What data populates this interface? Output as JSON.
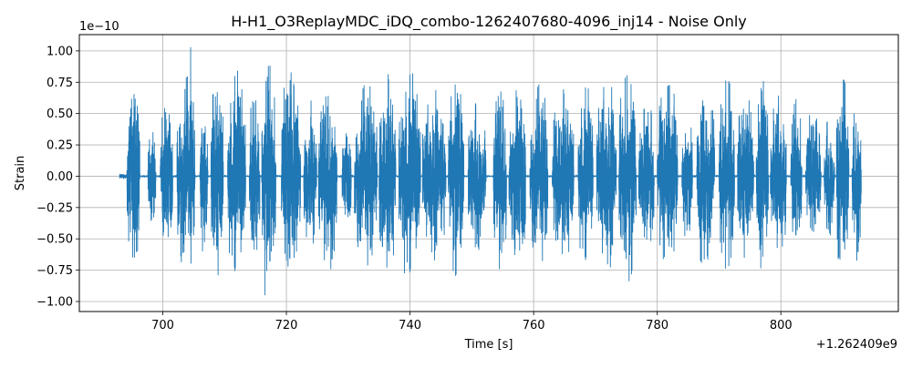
{
  "chart_data": {
    "type": "line",
    "title": "H-H1_O3ReplayMDC_iDQ_combo-1262407680-4096_inj14 - Noise Only",
    "xlabel": "Time [s]",
    "ylabel": "Strain",
    "x_offset_label": "+1.262409e9",
    "y_scale_label": "1e−10",
    "xlim": [
      686.5,
      819.0
    ],
    "ylim": [
      -1.08,
      1.13
    ],
    "x_ticks": [
      700,
      720,
      740,
      760,
      780,
      800
    ],
    "x_tick_labels": [
      "700",
      "720",
      "740",
      "760",
      "780",
      "800"
    ],
    "y_ticks": [
      -1.0,
      -0.75,
      -0.5,
      -0.25,
      0.0,
      0.25,
      0.5,
      0.75,
      1.0
    ],
    "y_tick_labels": [
      "−1.00",
      "−0.75",
      "−0.50",
      "−0.25",
      "0.00",
      "0.25",
      "0.50",
      "0.75",
      "1.00"
    ],
    "grid": true,
    "series": [
      {
        "color": "#1f77b4",
        "x_start": 693.0,
        "x_end": 813.0,
        "y_min": -0.95,
        "y_max": 1.03,
        "bursts": [
          [
            694.2,
            696.3,
            0.72
          ],
          [
            697.6,
            698.9,
            0.4
          ],
          [
            699.6,
            701.6,
            0.62
          ],
          [
            702.3,
            705.2,
            0.88
          ],
          [
            706.0,
            707.3,
            0.55
          ],
          [
            707.8,
            709.8,
            0.8
          ],
          [
            710.5,
            713.4,
            0.86
          ],
          [
            714.0,
            715.7,
            0.72
          ],
          [
            716.0,
            718.3,
            0.9
          ],
          [
            719.2,
            722.3,
            0.84
          ],
          [
            722.8,
            724.9,
            0.66
          ],
          [
            725.2,
            728.2,
            0.78
          ],
          [
            729.0,
            730.5,
            0.4
          ],
          [
            731.0,
            734.7,
            0.8
          ],
          [
            735.0,
            737.7,
            0.8
          ],
          [
            738.2,
            741.7,
            0.86
          ],
          [
            742.0,
            745.8,
            0.7
          ],
          [
            746.2,
            748.7,
            0.8
          ],
          [
            749.4,
            752.3,
            0.6
          ],
          [
            753.5,
            755.6,
            0.82
          ],
          [
            756.0,
            758.7,
            0.76
          ],
          [
            759.4,
            762.3,
            0.8
          ],
          [
            763.0,
            766.5,
            0.68
          ],
          [
            767.2,
            769.6,
            0.75
          ],
          [
            770.2,
            773.4,
            0.8
          ],
          [
            773.8,
            776.6,
            0.85
          ],
          [
            777.0,
            779.5,
            0.62
          ],
          [
            780.0,
            783.3,
            0.8
          ],
          [
            784.0,
            785.7,
            0.55
          ],
          [
            786.4,
            789.3,
            0.78
          ],
          [
            790.0,
            792.5,
            0.8
          ],
          [
            793.0,
            795.6,
            0.66
          ],
          [
            796.0,
            798.0,
            0.78
          ],
          [
            798.3,
            800.9,
            0.7
          ],
          [
            801.6,
            803.4,
            0.62
          ],
          [
            804.0,
            806.5,
            0.5
          ],
          [
            807.0,
            808.7,
            0.48
          ],
          [
            809.0,
            811.0,
            0.86
          ],
          [
            811.5,
            813.0,
            0.68
          ]
        ]
      }
    ]
  }
}
